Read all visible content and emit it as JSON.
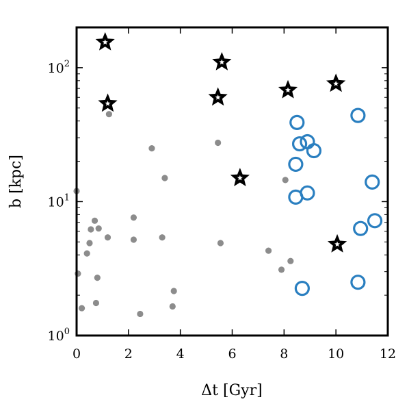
{
  "chart_data": {
    "type": "scatter",
    "xlabel": "Δt [Gyr]",
    "ylabel": "b [kpc]",
    "xlim": [
      0,
      12
    ],
    "ylim": [
      1,
      200
    ],
    "yscale": "log",
    "grid": false,
    "x_ticks": [
      0,
      2,
      4,
      6,
      8,
      10,
      12
    ],
    "x_tick_labels": [
      "0",
      "2",
      "4",
      "6",
      "8",
      "10",
      "12"
    ],
    "y_ticks": [
      1,
      10,
      100
    ],
    "y_tick_labels": [
      {
        "base": "10",
        "exp": "0"
      },
      {
        "base": "10",
        "exp": "1"
      },
      {
        "base": "10",
        "exp": "2"
      }
    ],
    "colors": {
      "dots": "#8c8c8c",
      "stars": "#000000",
      "circles": "#2a7fc0"
    },
    "series": [
      {
        "marker": "dot",
        "points": [
          {
            "x": 0.0,
            "y": 12.0
          },
          {
            "x": 0.05,
            "y": 2.9
          },
          {
            "x": 0.2,
            "y": 1.6
          },
          {
            "x": 0.4,
            "y": 4.1
          },
          {
            "x": 0.5,
            "y": 4.9
          },
          {
            "x": 0.55,
            "y": 6.2
          },
          {
            "x": 0.7,
            "y": 7.2
          },
          {
            "x": 0.85,
            "y": 6.3
          },
          {
            "x": 0.8,
            "y": 2.7
          },
          {
            "x": 0.75,
            "y": 1.75
          },
          {
            "x": 1.2,
            "y": 5.4
          },
          {
            "x": 1.25,
            "y": 45.0
          },
          {
            "x": 2.2,
            "y": 7.6
          },
          {
            "x": 2.2,
            "y": 5.2
          },
          {
            "x": 2.9,
            "y": 25.0
          },
          {
            "x": 2.45,
            "y": 1.45
          },
          {
            "x": 3.3,
            "y": 5.4
          },
          {
            "x": 3.4,
            "y": 15.0
          },
          {
            "x": 3.7,
            "y": 1.65
          },
          {
            "x": 3.75,
            "y": 2.15
          },
          {
            "x": 5.45,
            "y": 27.5
          },
          {
            "x": 5.55,
            "y": 4.9
          },
          {
            "x": 7.4,
            "y": 4.3
          },
          {
            "x": 7.9,
            "y": 3.1
          },
          {
            "x": 8.05,
            "y": 14.5
          },
          {
            "x": 8.25,
            "y": 3.6
          }
        ]
      },
      {
        "marker": "star",
        "points": [
          {
            "x": 1.1,
            "y": 155
          },
          {
            "x": 1.2,
            "y": 54
          },
          {
            "x": 5.45,
            "y": 60
          },
          {
            "x": 5.6,
            "y": 110
          },
          {
            "x": 6.3,
            "y": 15
          },
          {
            "x": 8.15,
            "y": 68
          },
          {
            "x": 10.0,
            "y": 76
          },
          {
            "x": 10.05,
            "y": 4.8
          }
        ]
      },
      {
        "marker": "circle",
        "points": [
          {
            "x": 8.5,
            "y": 39
          },
          {
            "x": 8.6,
            "y": 27
          },
          {
            "x": 8.9,
            "y": 28
          },
          {
            "x": 9.15,
            "y": 24
          },
          {
            "x": 8.45,
            "y": 19
          },
          {
            "x": 8.45,
            "y": 10.8
          },
          {
            "x": 8.9,
            "y": 11.6
          },
          {
            "x": 8.7,
            "y": 2.25
          },
          {
            "x": 10.85,
            "y": 44
          },
          {
            "x": 11.4,
            "y": 14
          },
          {
            "x": 10.95,
            "y": 6.3
          },
          {
            "x": 11.5,
            "y": 7.2
          },
          {
            "x": 10.85,
            "y": 2.5
          }
        ]
      }
    ]
  }
}
